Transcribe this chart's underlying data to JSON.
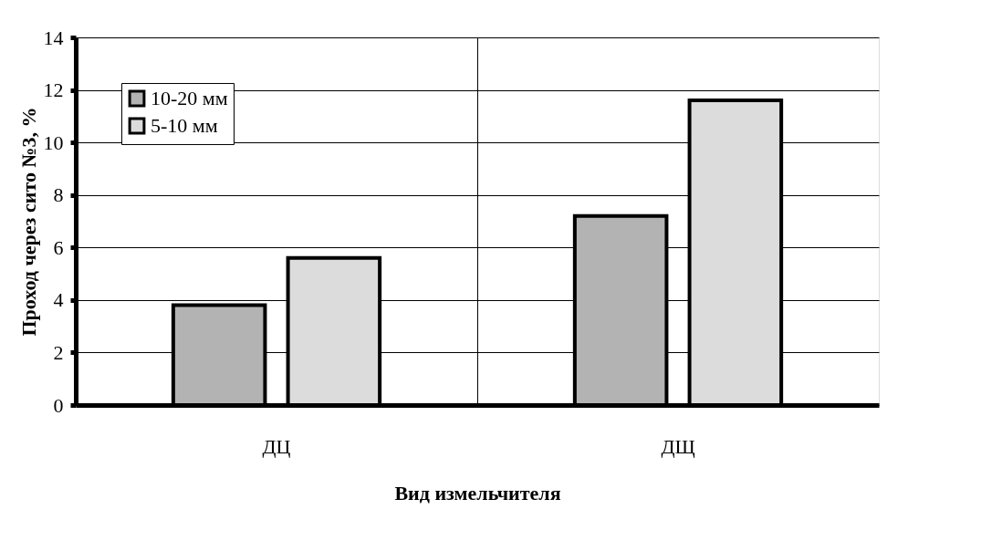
{
  "chart_data": {
    "type": "bar",
    "xlabel": "Вид измельчителя",
    "ylabel": "Проход через сито №3, %",
    "categories": [
      "ДЦ",
      "ДЩ"
    ],
    "series": [
      {
        "name": "10-20 мм",
        "color": "#b3b3b3",
        "values": [
          3.8,
          7.2
        ]
      },
      {
        "name": "5-10 мм",
        "color": "#dcdcdc",
        "values": [
          5.6,
          11.6
        ]
      }
    ],
    "ylim": [
      0,
      14
    ],
    "yticks": [
      0,
      2,
      4,
      6,
      8,
      10,
      12,
      14
    ],
    "grid": true,
    "legend": "top left"
  }
}
